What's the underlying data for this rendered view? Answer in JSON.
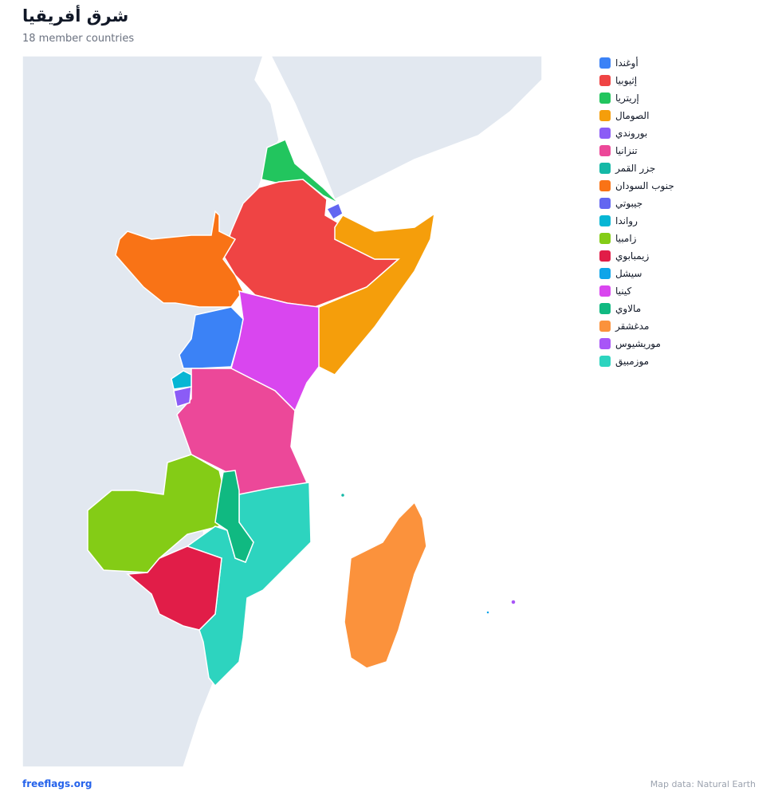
{
  "header": {
    "title": "شرق أفريقيا",
    "subtitle": "18 member countries"
  },
  "legend": [
    {
      "name": "أوغندا",
      "color": "#3b82f6"
    },
    {
      "name": "إثيوبيا",
      "color": "#ef4444"
    },
    {
      "name": "إريتريا",
      "color": "#22c55e"
    },
    {
      "name": "الصومال",
      "color": "#f59e0b"
    },
    {
      "name": "بوروندي",
      "color": "#8b5cf6"
    },
    {
      "name": "تنزانيا",
      "color": "#ec4899"
    },
    {
      "name": "جزر القمر",
      "color": "#14b8a6"
    },
    {
      "name": "جنوب السودان",
      "color": "#f97316"
    },
    {
      "name": "جيبوتي",
      "color": "#6366f1"
    },
    {
      "name": "رواندا",
      "color": "#06b6d4"
    },
    {
      "name": "زامبيا",
      "color": "#84cc16"
    },
    {
      "name": "زيمبابوي",
      "color": "#e11d48"
    },
    {
      "name": "سيشل",
      "color": "#0ea5e9"
    },
    {
      "name": "كينيا",
      "color": "#d946ef"
    },
    {
      "name": "مالاوي",
      "color": "#10b981"
    },
    {
      "name": "مدغشقر",
      "color": "#fb923c"
    },
    {
      "name": "موريشيوس",
      "color": "#a855f7"
    },
    {
      "name": "موزمبيق",
      "color": "#2dd4bf"
    }
  ],
  "footer": {
    "site": "freeflags.org",
    "credit": "Map data: Natural Earth"
  }
}
